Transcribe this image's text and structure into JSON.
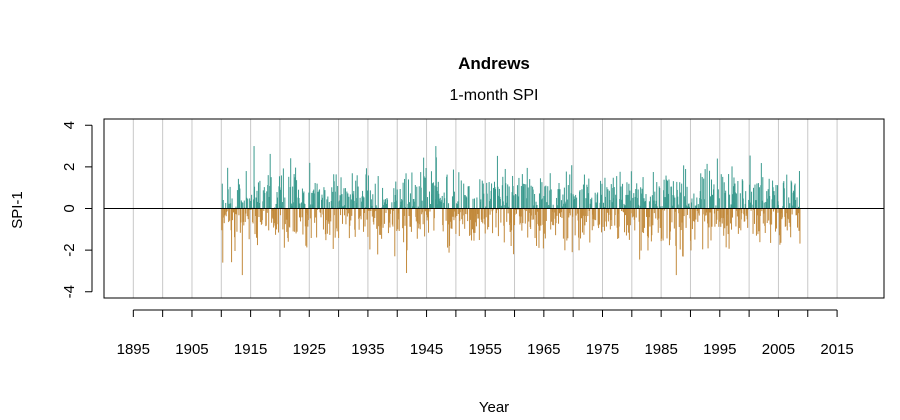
{
  "chart_data": {
    "type": "bar",
    "title": "Andrews",
    "subtitle": "1-month SPI",
    "xlabel": "Year",
    "ylabel": "SPI-1",
    "xlim": [
      1890,
      2023
    ],
    "ylim": [
      -4.3,
      4.3
    ],
    "x_ticks": [
      1895,
      1905,
      1915,
      1925,
      1935,
      1945,
      1955,
      1965,
      1975,
      1985,
      1995,
      2005,
      2015
    ],
    "x_gridlines": [
      1895,
      1900,
      1905,
      1910,
      1915,
      1920,
      1925,
      1930,
      1935,
      1940,
      1945,
      1950,
      1955,
      1960,
      1965,
      1970,
      1975,
      1980,
      1985,
      1990,
      1995,
      2000,
      2005,
      2010,
      2015
    ],
    "y_ticks": [
      -4,
      -2,
      0,
      2,
      4
    ],
    "grid": true,
    "legend": "none",
    "colors": {
      "positive": "#3a9a8e",
      "negative": "#c28a3c",
      "grid": "#c8c8c8",
      "zero_line": "#000000"
    },
    "series": [
      {
        "resolution": "monthly",
        "x_start": 1910.0,
        "x_end": 2008.6,
        "y_range": [
          -3.2,
          3.0
        ],
        "notable_peaks": [
          {
            "x": 1915.5,
            "y": 3.0
          },
          {
            "x": 1946.5,
            "y": 3.0
          },
          {
            "x": 1994.5,
            "y": 2.4
          },
          {
            "x": 1910.2,
            "y": -2.6
          },
          {
            "x": 1913.5,
            "y": -3.2
          },
          {
            "x": 1941.5,
            "y": -3.1
          },
          {
            "x": 1987.5,
            "y": -3.2
          },
          {
            "x": 2008.5,
            "y": 1.8
          }
        ]
      }
    ]
  }
}
